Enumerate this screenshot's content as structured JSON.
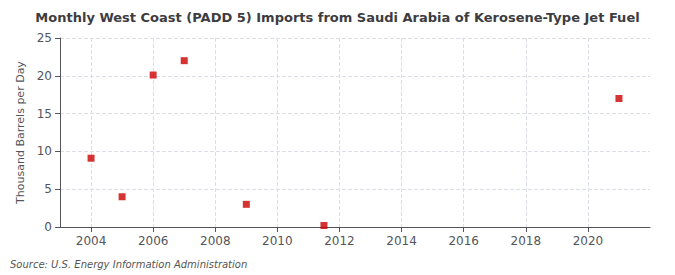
{
  "chart_data": {
    "type": "scatter",
    "title": "Monthly West Coast (PADD 5) Imports from Saudi Arabia of Kerosene-Type Jet Fuel",
    "ylabel": "Thousand Barrels per Day",
    "source": "Source: U.S. Energy Information Administration",
    "x": [
      2004,
      2005,
      2006,
      2007,
      2009,
      2011.5,
      2021
    ],
    "values": [
      9.1,
      4.0,
      20.1,
      22.0,
      3.0,
      0.2,
      17.0
    ],
    "color": "#cc0000",
    "marker": "square",
    "xlim": [
      2003,
      2022
    ],
    "ylim": [
      0,
      25
    ],
    "xticks": [
      2004,
      2006,
      2008,
      2010,
      2012,
      2014,
      2016,
      2018,
      2020
    ],
    "yticks": [
      0,
      5,
      10,
      15,
      20,
      25
    ],
    "grid": true
  }
}
